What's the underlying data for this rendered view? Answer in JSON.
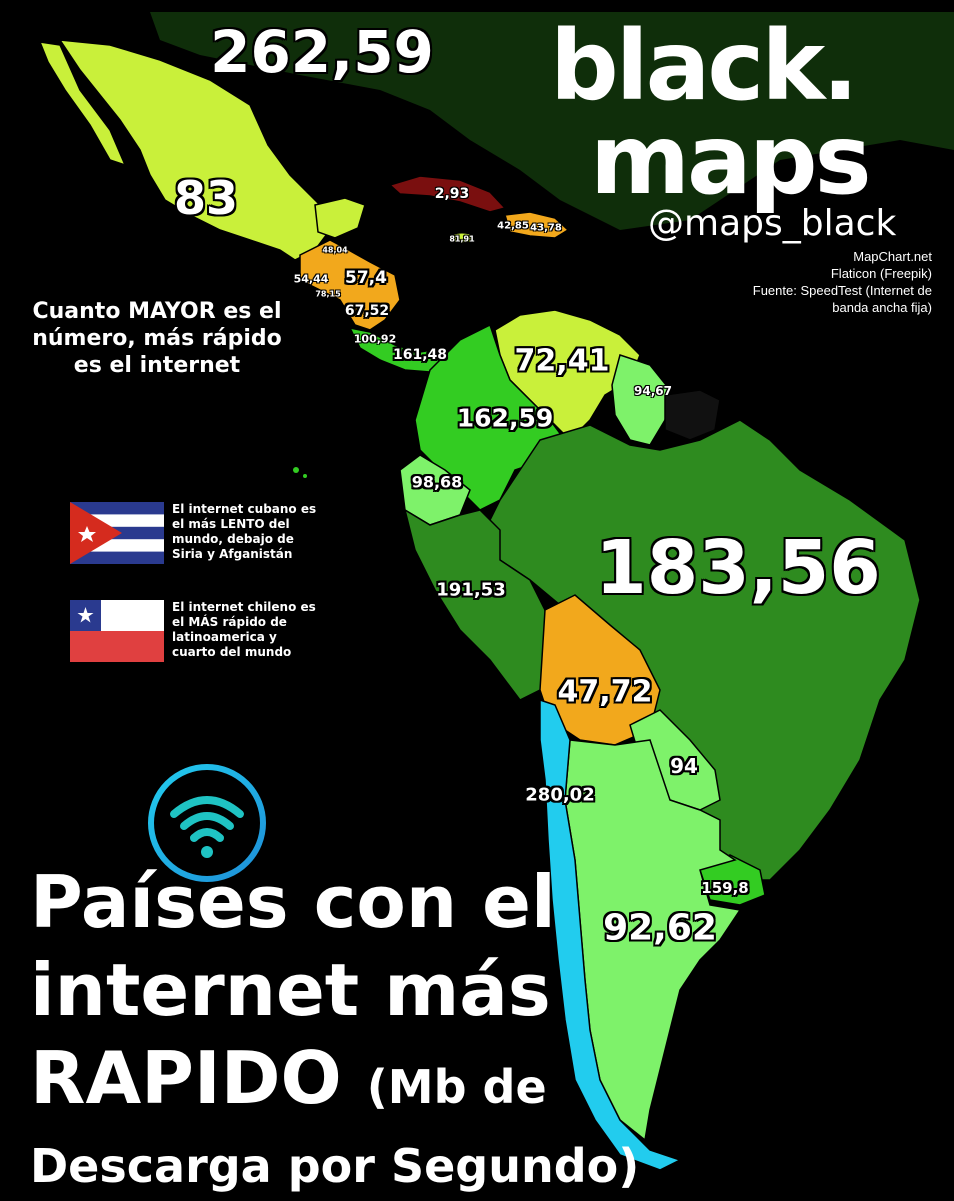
{
  "brand": {
    "line1": "black.",
    "line2": "maps",
    "handle": "@maps_black"
  },
  "credits": [
    "MapChart.net",
    "Flaticon (Freepik)",
    "Fuente: SpeedTest (Internet de",
    "banda ancha fija)"
  ],
  "note": "Cuanto MAYOR es el número, más rápido es el internet",
  "cuba_note": "El internet cubano es el más LENTO del mundo, debajo de Siria y Afganistán",
  "chile_note": "El internet chileno es el MÁS rápido de latinoamerica y cuarto del mundo",
  "title": {
    "line1": "Países con el",
    "line2": "internet más",
    "line3_big": "RAPIDO",
    "line3_small": "(Mb de",
    "line4": "Descarga por Segundo)"
  },
  "labels": {
    "usa": "262,59",
    "mexico": "83",
    "cuba": "2,93",
    "jamaica": "81,91",
    "haiti": "42,85",
    "dominican": "43,78",
    "belize": "48,04",
    "guatemala": "54,44",
    "honduras": "57,4",
    "el_salvador": "78,15",
    "nicaragua": "67,52",
    "costa_rica": "100,92",
    "panama": "161,48",
    "venezuela": "72,41",
    "guyana": "94,67",
    "colombia": "162,59",
    "ecuador": "98,68",
    "brazil": "183,56",
    "peru": "191,53",
    "bolivia": "47,72",
    "paraguay": "94",
    "chile": "280,02",
    "uruguay": "159,8",
    "argentina": "92,62"
  },
  "colors": {
    "background": "#000000",
    "dark_green": "#2e8b1f",
    "bright_green": "#33cc22",
    "light_green": "#7ef26a",
    "yellow_green": "#c9f03a",
    "orange": "#f2a81c",
    "cyan": "#22ccee",
    "dark_red": "#7a0f0f",
    "usa_dark": "#0f2e0a"
  }
}
